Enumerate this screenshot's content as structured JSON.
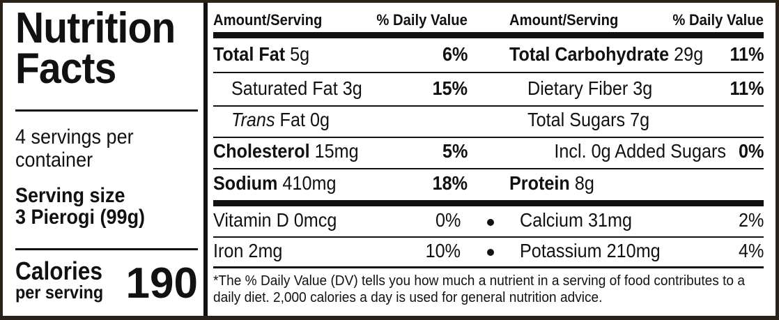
{
  "title": "Nutrition Facts",
  "servings_per_container": "4 servings per container",
  "serving_size_label": "Serving size",
  "serving_size_value": "3 Pierogi (99g)",
  "calories_label": "Calories",
  "calories_sub": "per serving",
  "calories_value": "190",
  "headers": {
    "amount_left": "Amount/Serving",
    "dv_left": "% Daily Value",
    "amount_right": "Amount/Serving",
    "dv_right": "% Daily Value"
  },
  "left_rows": [
    {
      "name": "Total Fat",
      "amount": "5g",
      "dv": "6%"
    },
    {
      "name": "Saturated Fat",
      "amount": "3g",
      "dv": "15%"
    },
    {
      "name": "Trans",
      "name_rest": "Fat 0g",
      "dv": ""
    },
    {
      "name": "Cholesterol",
      "amount": "15mg",
      "dv": "5%"
    },
    {
      "name": "Sodium",
      "amount": "410mg",
      "dv": "18%"
    }
  ],
  "right_rows": [
    {
      "name": "Total Carbohydrate",
      "amount": "29g",
      "dv": "11%"
    },
    {
      "name": "Dietary Fiber",
      "amount": "3g",
      "dv": "11%"
    },
    {
      "name": "Total Sugars",
      "amount": "7g",
      "dv": ""
    },
    {
      "name": "Incl. 0g Added Sugars",
      "amount": "",
      "dv": "0%"
    },
    {
      "name": "Protein",
      "amount": "8g",
      "dv": ""
    }
  ],
  "vitamins": [
    {
      "left": "Vitamin D 0mcg",
      "left_dv": "0%",
      "right": "Calcium 31mg",
      "right_dv": "2%"
    },
    {
      "left": "Iron 2mg",
      "left_dv": "10%",
      "right": "Potassium 210mg",
      "right_dv": "4%"
    }
  ],
  "footnote": "*The % Daily Value (DV) tells you how much a nutrient in a serving of food contributes to a daily diet. 2,000 calories a day is used for general nutrition advice.",
  "colors": {
    "ink": "#111111",
    "frame": "#2a2118",
    "background": "#ffffff"
  }
}
